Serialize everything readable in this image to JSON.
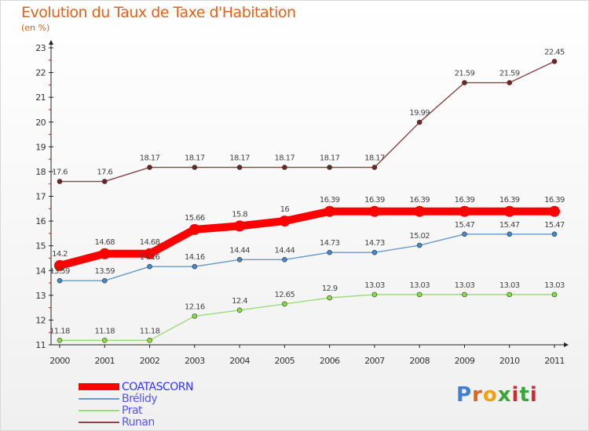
{
  "header": {
    "title": "Evolution du Taux de Taxe d'Habitation",
    "subtitle": "(en %)"
  },
  "logo": {
    "text": "Proxiti",
    "colors": [
      "#3f7fd1",
      "#e2611b",
      "#f0a010",
      "#3aa63a",
      "#d8262e",
      "#3aa63a",
      "#d8262e"
    ]
  },
  "chart_data": {
    "type": "line",
    "title": "Evolution du Taux de Taxe d'Habitation",
    "subtitle": "(en %)",
    "x": [
      "2000",
      "2001",
      "2002",
      "2003",
      "2004",
      "2005",
      "2006",
      "2007",
      "2008",
      "2009",
      "2010",
      "2011"
    ],
    "ylim": [
      11,
      23
    ],
    "yticks": [
      "11",
      "12",
      "13",
      "14",
      "15",
      "16",
      "17",
      "18",
      "19",
      "20",
      "21",
      "22",
      "23"
    ],
    "grid": false,
    "legend_position": "bottom-left",
    "series": [
      {
        "name": "COATASCORN",
        "color": "#ff0000",
        "marker_color": "#ff0000",
        "emphasis": true,
        "values": [
          14.2,
          14.68,
          14.68,
          15.66,
          15.8,
          16,
          16.39,
          16.39,
          16.39,
          16.39,
          16.39,
          16.39
        ],
        "labels": [
          "14.2",
          "14.68",
          "14.68",
          "15.66",
          "15.8",
          "16",
          "16.39",
          "16.39",
          "16.39",
          "16.39",
          "16.39",
          "16.39"
        ]
      },
      {
        "name": "Brélidy",
        "color": "#6699cc",
        "marker_color": "#4488cc",
        "emphasis": false,
        "values": [
          13.59,
          13.59,
          14.16,
          14.16,
          14.44,
          14.44,
          14.73,
          14.73,
          15.02,
          15.47,
          15.47,
          15.47
        ],
        "labels": [
          "13.59",
          "13.59",
          "14.16",
          "14.16",
          "14.44",
          "14.44",
          "14.73",
          "14.73",
          "15.02",
          "15.47",
          "15.47",
          "15.47"
        ]
      },
      {
        "name": "Prat",
        "color": "#99dd77",
        "marker_color": "#88dd44",
        "emphasis": false,
        "values": [
          11.18,
          11.18,
          11.18,
          12.16,
          12.4,
          12.65,
          12.9,
          13.03,
          13.03,
          13.03,
          13.03,
          13.03
        ],
        "labels": [
          "11.18",
          "11.18",
          "11.18",
          "12.16",
          "12.4",
          "12.65",
          "12.9",
          "13.03",
          "13.03",
          "13.03",
          "13.03",
          "13.03"
        ]
      },
      {
        "name": "Runan",
        "color": "#884444",
        "marker_color": "#772222",
        "emphasis": false,
        "values": [
          17.6,
          17.6,
          18.17,
          18.17,
          18.17,
          18.17,
          18.17,
          18.17,
          19.99,
          21.59,
          21.59,
          22.45
        ],
        "labels": [
          "17.6",
          "17.6",
          "18.17",
          "18.17",
          "18.17",
          "18.17",
          "18.17",
          "18.17",
          "19.99",
          "21.59",
          "21.59",
          "22.45"
        ]
      }
    ]
  }
}
